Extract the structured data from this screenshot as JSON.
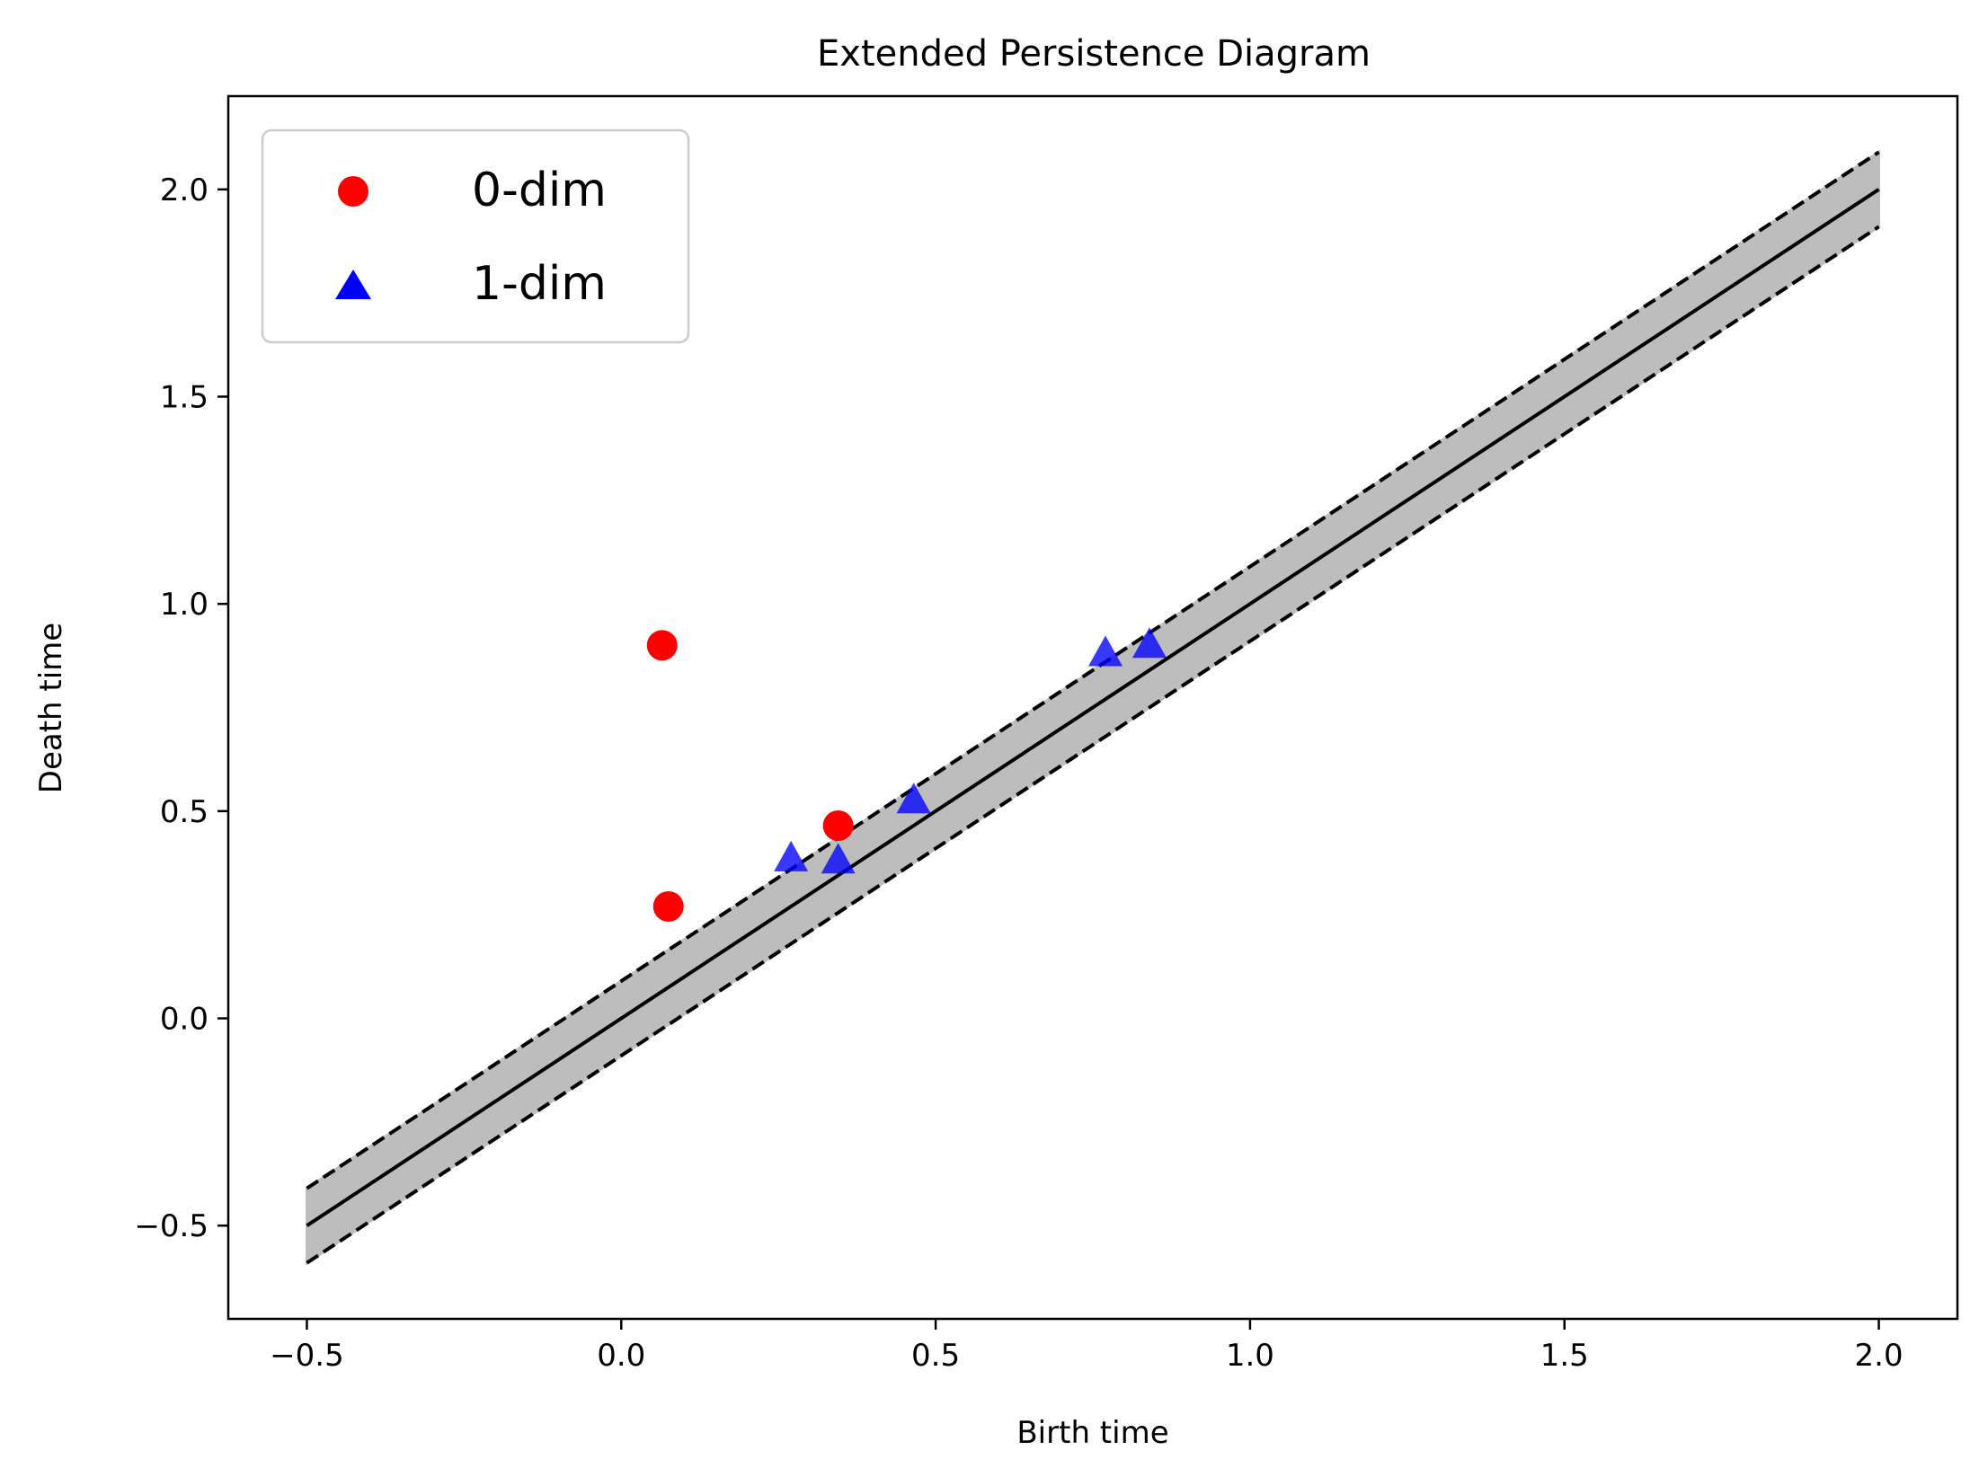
{
  "chart_data": {
    "type": "scatter",
    "title": "Extended Persistence Diagram",
    "xlabel": "Birth time",
    "ylabel": "Death time",
    "xlim": [
      -0.625,
      2.125
    ],
    "ylim": [
      -0.725,
      2.225
    ],
    "xticks": [
      -0.5,
      0.0,
      0.5,
      1.0,
      1.5,
      2.0
    ],
    "xtick_labels": [
      "−0.5",
      "0.0",
      "0.5",
      "1.0",
      "1.5",
      "2.0"
    ],
    "yticks": [
      -0.5,
      0.0,
      0.5,
      1.0,
      1.5,
      2.0
    ],
    "ytick_labels": [
      "−0.5",
      "0.0",
      "0.5",
      "1.0",
      "1.5",
      "2.0"
    ],
    "grid": false,
    "legend_position": "top-left",
    "diagonal": {
      "range": [
        -0.5,
        2.0
      ],
      "band_half_width": 0.09,
      "line_color": "#000000",
      "band_color": "#bdbdbd"
    },
    "series": [
      {
        "name": "0-dim",
        "marker": "circle",
        "color": "#ff0000",
        "points": [
          {
            "x": 0.065,
            "y": 0.9
          },
          {
            "x": 0.075,
            "y": 0.27
          },
          {
            "x": 0.345,
            "y": 0.465
          }
        ]
      },
      {
        "name": "1-dim",
        "marker": "triangle",
        "color": "#0000ff",
        "points": [
          {
            "x": 0.27,
            "y": 0.385
          },
          {
            "x": 0.345,
            "y": 0.38
          },
          {
            "x": 0.465,
            "y": 0.525
          },
          {
            "x": 0.77,
            "y": 0.88
          },
          {
            "x": 0.84,
            "y": 0.9
          }
        ]
      }
    ]
  }
}
